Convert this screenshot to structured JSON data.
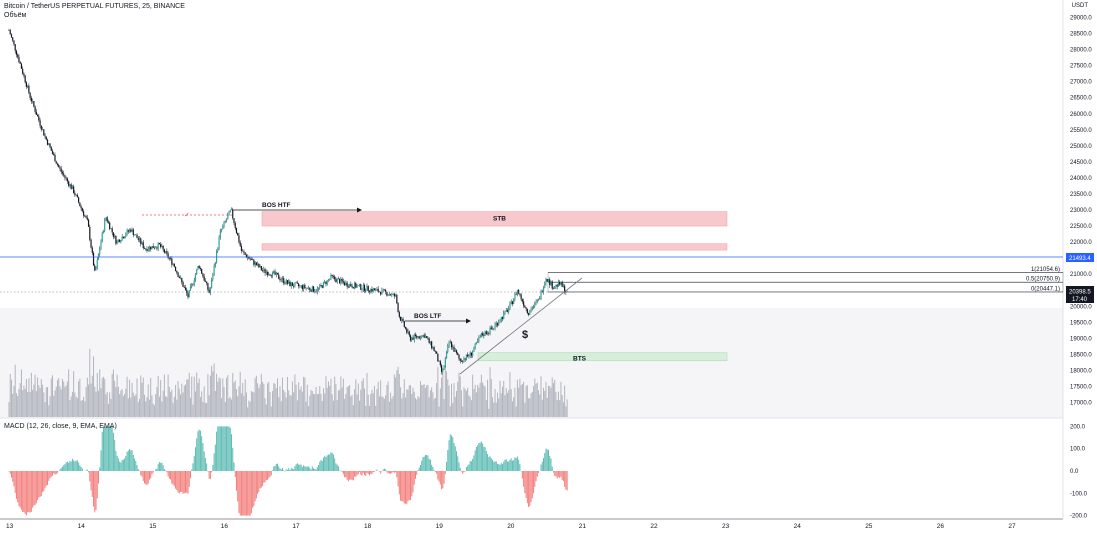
{
  "header": {
    "title": "Bitcoin / TetherUS PERPETUAL FUTURES, 25, BINANCE",
    "volume_label": "Объём",
    "currency": "USDT"
  },
  "macd_label": "MACD (12, 26, close, 9, EMA, EMA)",
  "colors": {
    "up": "#26a69a",
    "down": "#ef5350",
    "stb_zone": "#f8c9cc",
    "bts_zone": "#d6efda",
    "price_line": "#2962ff",
    "current_price_bg": "#131722"
  },
  "price_tags": {
    "blue_level": "21493.4",
    "current_price": "20398.5",
    "countdown": "17:40"
  },
  "annotations": {
    "bos_htf": "BOS HTF",
    "bos_ltf": "BOS LTF",
    "stb": "STB",
    "bts": "BTS",
    "dollar": "$",
    "check": "✓"
  },
  "chart_data": {
    "type": "line",
    "title": "Bitcoin / TetherUS PERPETUAL FUTURES, 25, BINANCE",
    "price_axis": {
      "ticks": [
        "29000.0",
        "28500.0",
        "28000.0",
        "27500.0",
        "27000.0",
        "26500.0",
        "26000.0",
        "25500.0",
        "25000.0",
        "24500.0",
        "24000.0",
        "23500.0",
        "23000.0",
        "22500.0",
        "22000.0",
        "21500.0",
        "21000.0",
        "20500.0",
        "20000.0",
        "19500.0",
        "19000.0",
        "18500.0",
        "18000.0",
        "17500.0",
        "17000.0"
      ],
      "range": [
        16800,
        29100
      ]
    },
    "macd_axis": {
      "ticks": [
        "200.0",
        "100.0",
        "0.0",
        "-100.0",
        "-200.0"
      ],
      "range": [
        -210,
        210
      ]
    },
    "x_axis": {
      "ticks": [
        "13",
        "14",
        "15",
        "16",
        "17",
        "18",
        "19",
        "20",
        "21",
        "22",
        "23",
        "24",
        "25",
        "26",
        "27"
      ]
    },
    "series": [
      {
        "x": [
          13.0,
          13.15,
          13.3,
          13.5,
          13.7,
          13.9,
          14.1,
          14.2,
          14.35,
          14.5,
          14.7,
          14.9,
          15.1,
          15.3,
          15.5,
          15.65,
          15.8,
          15.95,
          16.1,
          16.25,
          16.4,
          16.55,
          16.7,
          16.9,
          17.1,
          17.3,
          17.5,
          17.7,
          17.9,
          18.1,
          18.3,
          18.4,
          18.45,
          18.6,
          18.8,
          18.95,
          19.05,
          19.15,
          19.3,
          19.45,
          19.6,
          19.75,
          19.9,
          20.0,
          20.1,
          20.25,
          20.4,
          20.5,
          20.6,
          20.7,
          20.8
        ],
        "values": [
          28600,
          27600,
          26500,
          25300,
          24300,
          23600,
          22600,
          21000,
          22800,
          22000,
          22400,
          21800,
          21900,
          21300,
          20300,
          21300,
          20400,
          22300,
          23000,
          21700,
          21400,
          21100,
          21000,
          20700,
          20600,
          20500,
          20900,
          20700,
          20600,
          20500,
          20400,
          20300,
          19700,
          19000,
          19100,
          18600,
          17900,
          18900,
          18300,
          18500,
          19100,
          19300,
          19700,
          20000,
          20500,
          19800,
          20200,
          20900,
          20600,
          20700,
          20400
        ]
      }
    ],
    "levels": [
      {
        "label": "1(21054.6)",
        "value": 21054.6
      },
      {
        "label": "0.5(20750.9)",
        "value": 20750.9
      },
      {
        "label": "0(20447.1)",
        "value": 20447.1
      }
    ],
    "zones": [
      {
        "label": "STB",
        "from": 22500,
        "to": 22950
      },
      {
        "label": "",
        "from": 21750,
        "to": 21950
      },
      {
        "label": "BTS",
        "from": 18300,
        "to": 18550
      }
    ],
    "grid": false
  }
}
